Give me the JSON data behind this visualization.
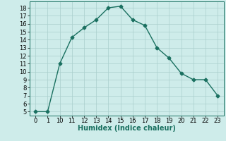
{
  "x_labels": [
    "0",
    "1",
    "10",
    "11",
    "12",
    "13",
    "14",
    "15",
    "16",
    "17",
    "18",
    "19",
    "20",
    "21",
    "22",
    "23"
  ],
  "y": [
    5,
    5,
    11,
    14.3,
    15.5,
    16.5,
    18,
    18.2,
    16.5,
    15.8,
    13,
    11.7,
    9.8,
    9,
    9,
    7
  ],
  "line_color": "#1a7060",
  "bg_color": "#ceecea",
  "grid_color": "#aacfcc",
  "xlabel": "Humidex (Indice chaleur)",
  "ylim": [
    4.5,
    18.8
  ],
  "yticks": [
    5,
    6,
    7,
    8,
    9,
    10,
    11,
    12,
    13,
    14,
    15,
    16,
    17,
    18
  ],
  "marker": "D",
  "marker_size": 2.5,
  "line_width": 1.0,
  "xlabel_fontsize": 7,
  "tick_fontsize": 6
}
